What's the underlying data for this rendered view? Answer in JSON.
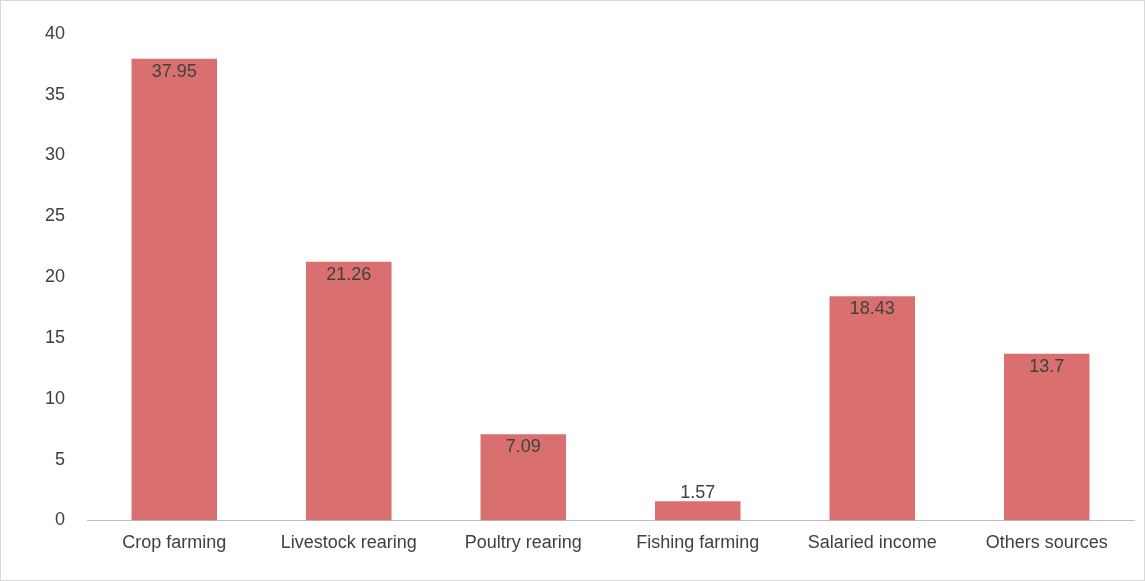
{
  "chart_data": {
    "type": "bar",
    "categories": [
      "Crop farming",
      "Livestock rearing",
      "Poultry rearing",
      "Fishing farming",
      "Salaried income",
      "Others sources"
    ],
    "values": [
      37.95,
      21.26,
      7.09,
      1.57,
      18.43,
      13.7
    ],
    "color": "#d9706f",
    "ylim": [
      0,
      40
    ],
    "yticks": [
      0,
      5,
      10,
      15,
      20,
      25,
      30,
      35,
      40
    ],
    "grid": false,
    "data_labels": true
  }
}
